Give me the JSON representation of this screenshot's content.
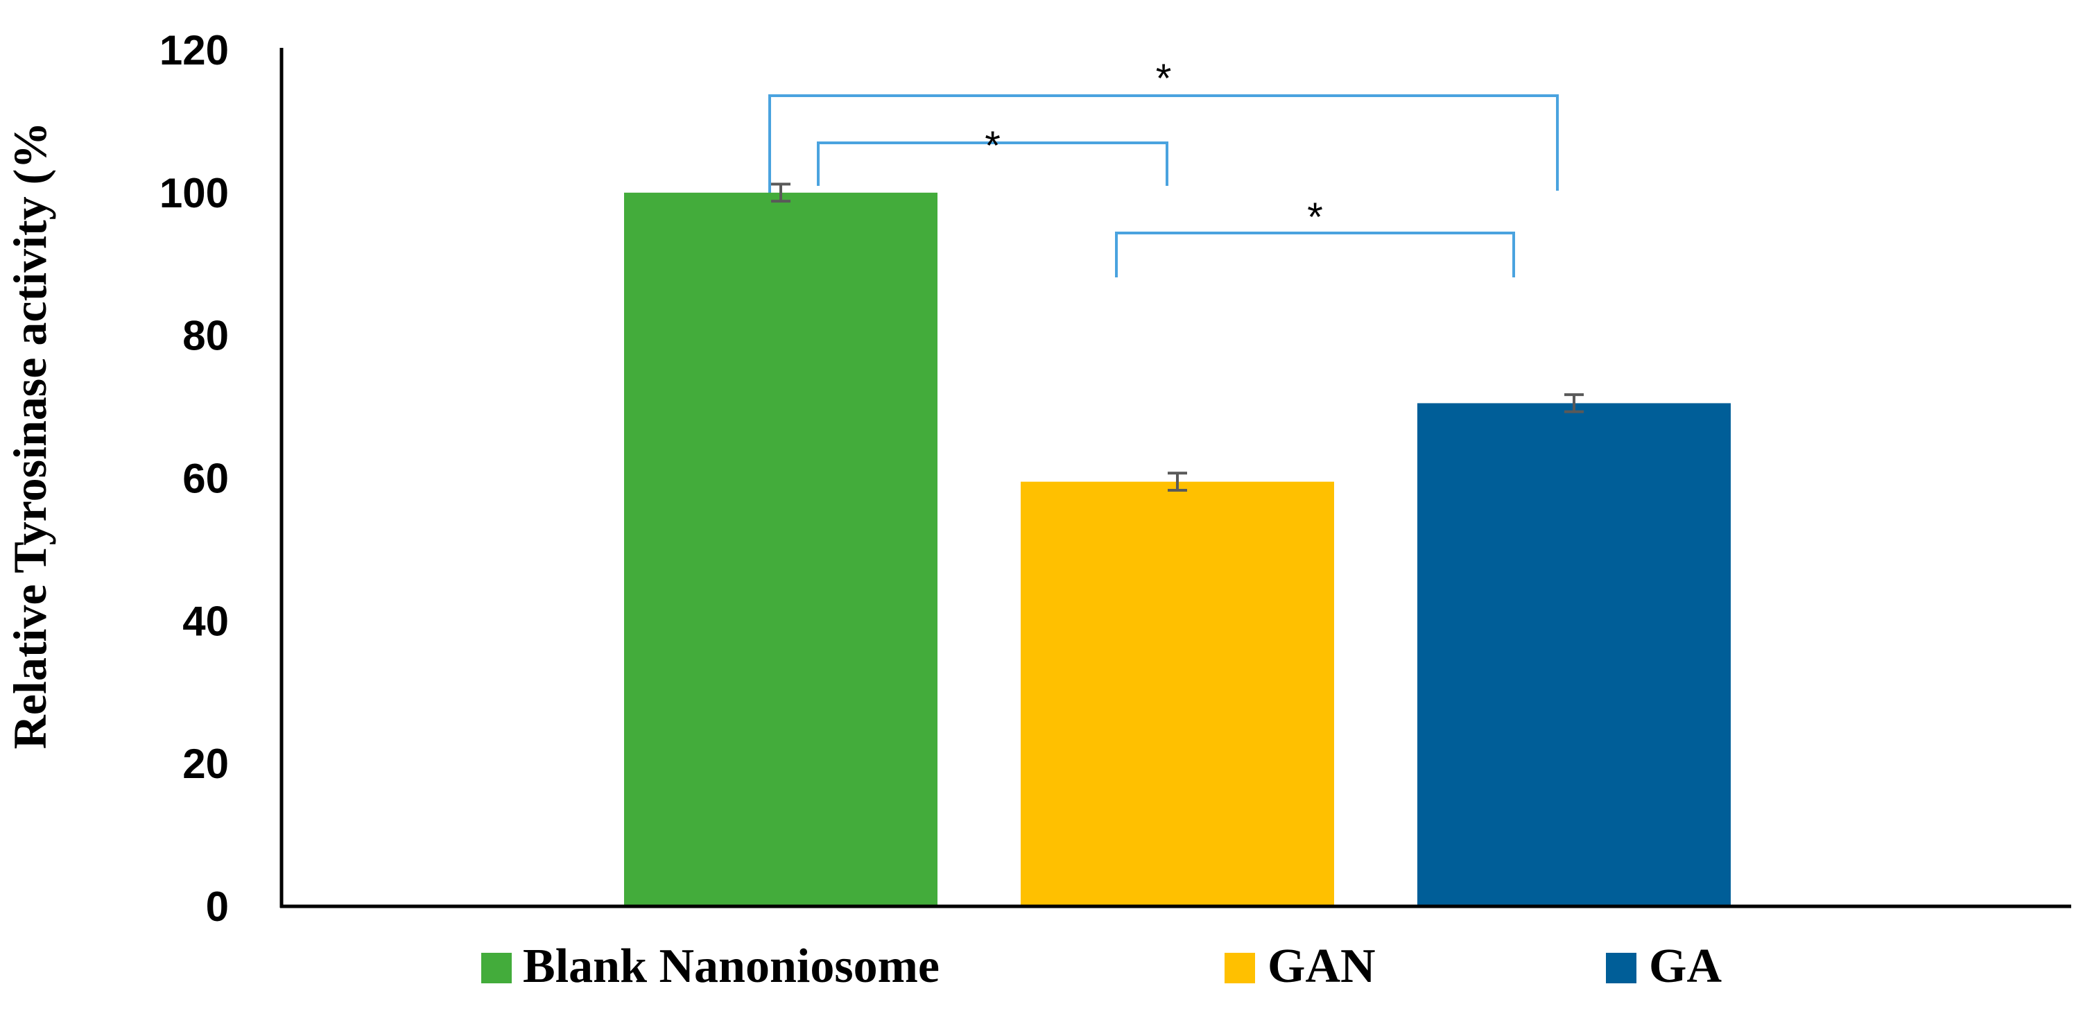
{
  "chart_data": {
    "type": "bar",
    "ylabel": "Relative Tyrosinase  activity (%",
    "xlabel": "",
    "title": "",
    "ylim": [
      0,
      120
    ],
    "yticks": [
      0,
      20,
      40,
      60,
      80,
      100,
      120
    ],
    "grid": false,
    "legend_position": "bottom",
    "series": [
      {
        "name": "Blank Nanoniosome",
        "value": 100,
        "error": 1.2,
        "color": "#43AC3B"
      },
      {
        "name": "GAN",
        "value": 59.5,
        "error": 1.2,
        "color": "#FFC000"
      },
      {
        "name": "GA",
        "value": 70.5,
        "error": 1.2,
        "color": "#005E98"
      }
    ],
    "significance": [
      {
        "from": "Blank Nanoniosome",
        "to": "GAN",
        "label": "*"
      },
      {
        "from": "Blank Nanoniosome",
        "to": "GA",
        "label": "*"
      },
      {
        "from": "GAN",
        "to": "GA",
        "label": "*"
      }
    ]
  }
}
